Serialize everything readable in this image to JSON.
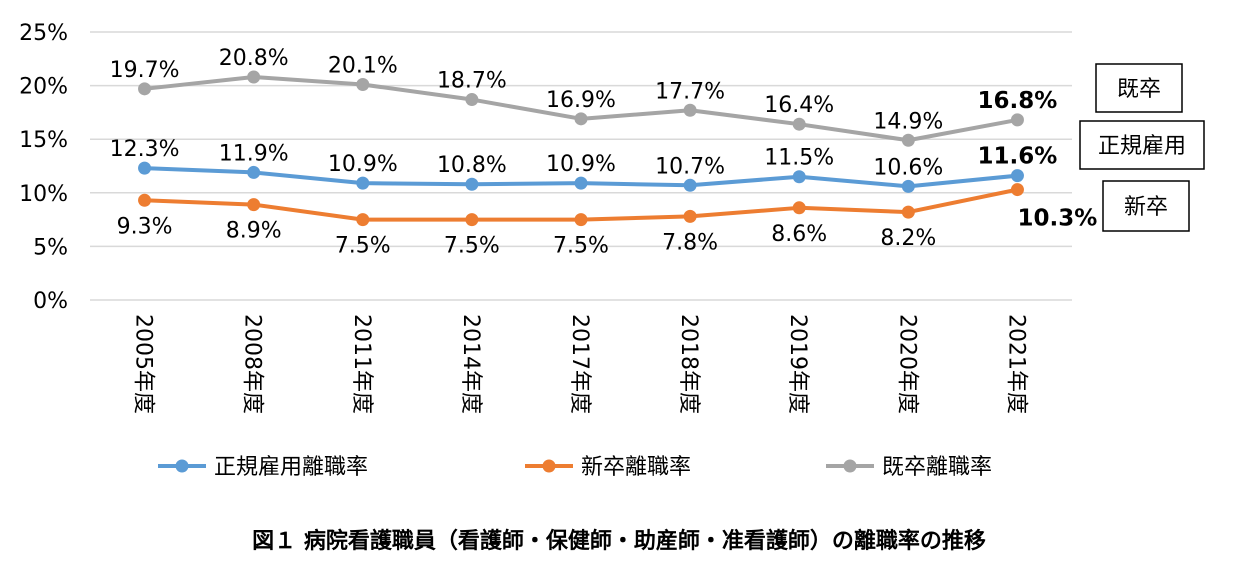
{
  "chart_data": {
    "type": "line",
    "title": "図１ 病院看護職員（看護師・保健師・助産師・准看護師）の離職率の推移",
    "categories": [
      "2005年度",
      "2008年度",
      "2011年度",
      "2014年度",
      "2017年度",
      "2018年度",
      "2019年度",
      "2020年度",
      "2021年度"
    ],
    "ylim": [
      0,
      25
    ],
    "yticks": [
      "0%",
      "5%",
      "10%",
      "15%",
      "20%",
      "25%"
    ],
    "grid": true,
    "legend_position": "bottom",
    "series": [
      {
        "name": "正規雇用離職率",
        "color": "#5B9BD5",
        "values": [
          12.3,
          11.9,
          10.9,
          10.8,
          10.9,
          10.7,
          11.5,
          10.6,
          11.6
        ],
        "labels": [
          "12.3%",
          "11.9%",
          "10.9%",
          "10.8%",
          "10.9%",
          "10.7%",
          "11.5%",
          "10.6%",
          "11.6%"
        ],
        "label_position": "above",
        "end_label": "正規雇用"
      },
      {
        "name": "新卒離職率",
        "color": "#ED7D31",
        "values": [
          9.3,
          8.9,
          7.5,
          7.5,
          7.5,
          7.8,
          8.6,
          8.2,
          10.3
        ],
        "labels": [
          "9.3%",
          "8.9%",
          "7.5%",
          "7.5%",
          "7.5%",
          "7.8%",
          "8.6%",
          "8.2%",
          "10.3%"
        ],
        "label_position": "below",
        "end_label": "新卒"
      },
      {
        "name": "既卒離職率",
        "color": "#A5A5A5",
        "values": [
          19.7,
          20.8,
          20.1,
          18.7,
          16.9,
          17.7,
          16.4,
          14.9,
          16.8
        ],
        "labels": [
          "19.7%",
          "20.8%",
          "20.1%",
          "18.7%",
          "16.9%",
          "17.7%",
          "16.4%",
          "14.9%",
          "16.8%"
        ],
        "label_position": "above",
        "end_label": "既卒"
      }
    ]
  }
}
